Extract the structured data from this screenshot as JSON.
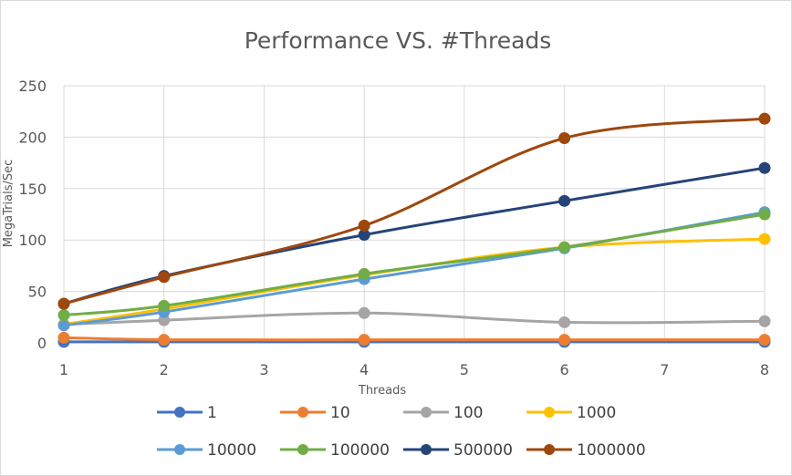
{
  "chart_data": {
    "type": "line",
    "title": "Performance VS. #Threads",
    "xlabel": "Threads",
    "ylabel": "MegaTrials/Sec",
    "x": [
      1,
      2,
      4,
      6,
      8
    ],
    "xticks": [
      1,
      2,
      3,
      4,
      5,
      6,
      7,
      8
    ],
    "yticks": [
      0,
      50,
      100,
      150,
      200,
      250
    ],
    "xlim": [
      1,
      8
    ],
    "ylim": [
      0,
      250
    ],
    "grid": true,
    "smooth": true,
    "legend_position": "bottom",
    "series": [
      {
        "name": "1",
        "color": "#4472C4",
        "values": [
          1,
          1,
          1,
          1,
          1
        ]
      },
      {
        "name": "10",
        "color": "#ED7D31",
        "values": [
          5,
          3,
          3,
          3,
          3
        ]
      },
      {
        "name": "100",
        "color": "#A5A5A5",
        "values": [
          18,
          22,
          29,
          20,
          21
        ]
      },
      {
        "name": "1000",
        "color": "#FFC000",
        "values": [
          18,
          33,
          66,
          93,
          101
        ]
      },
      {
        "name": "10000",
        "color": "#5B9BD5",
        "values": [
          17,
          30,
          62,
          92,
          127
        ]
      },
      {
        "name": "100000",
        "color": "#70AD47",
        "values": [
          27,
          36,
          67,
          93,
          125
        ]
      },
      {
        "name": "500000",
        "color": "#264478",
        "values": [
          38,
          65,
          105,
          138,
          170
        ]
      },
      {
        "name": "1000000",
        "color": "#9E480E",
        "values": [
          38,
          64,
          114,
          199,
          218
        ]
      }
    ]
  }
}
